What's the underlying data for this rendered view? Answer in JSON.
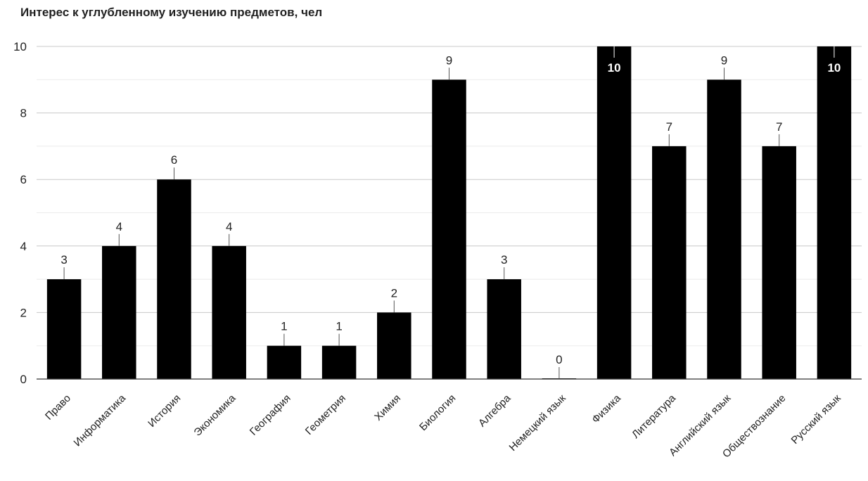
{
  "chart_data": {
    "type": "bar",
    "title": "Интерес к углубленному изучению предметов, чел",
    "xlabel": "",
    "ylabel": "",
    "categories": [
      "Право",
      "Информатика",
      "История",
      "Экономика",
      "География",
      "Геометрия",
      "Химия",
      "Биология",
      "Алгебра",
      "Немецкий язык",
      "Физика",
      "Литература",
      "Английский язык",
      "Обществознание",
      "Русский язык"
    ],
    "values": [
      3,
      4,
      6,
      4,
      1,
      1,
      2,
      9,
      3,
      0,
      10,
      7,
      9,
      7,
      10
    ],
    "ylim": [
      0,
      10
    ],
    "yticks": [
      0,
      2,
      4,
      6,
      8,
      10
    ],
    "grid": true,
    "legend": "none",
    "data_labels": true,
    "colors": {
      "bar": "#000000",
      "grid": "#c8c8c8",
      "grid_minor": "#ebebeb",
      "text": "#222222"
    }
  }
}
